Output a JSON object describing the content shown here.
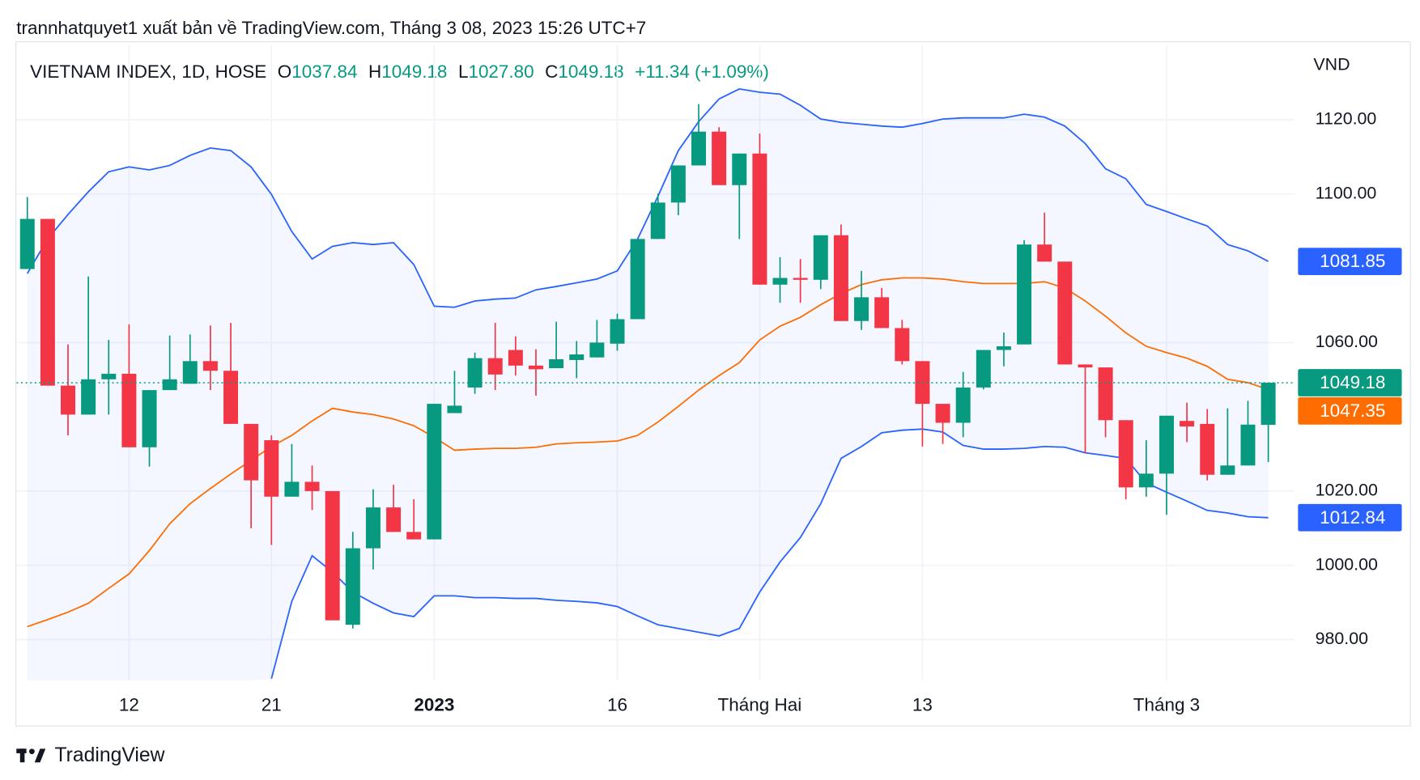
{
  "header": {
    "title": "trannhatquyet1 xuất bản về TradingView.com, Tháng 3 08, 2023 15:26 UTC+7"
  },
  "legend": {
    "symbol": "VIETNAM INDEX, 1D, HOSE",
    "fields": [
      {
        "key": "O",
        "value": "1037.84"
      },
      {
        "key": "H",
        "value": "1049.18"
      },
      {
        "key": "L",
        "value": "1027.80"
      },
      {
        "key": "C",
        "value": "1049.18"
      }
    ],
    "change": "+11.34 (+1.09%)"
  },
  "footer": {
    "brand": "TradingView"
  },
  "chart_data": {
    "type": "candlestick",
    "ylabel": "VND",
    "ylim": [
      969,
      1140
    ],
    "yticks": [
      {
        "value": 980,
        "label": "980.00"
      },
      {
        "value": 1000,
        "label": "1000.00"
      },
      {
        "value": 1020,
        "label": "1020.00"
      },
      {
        "value": 1060,
        "label": "1060.00"
      },
      {
        "value": 1100,
        "label": "1100.00"
      },
      {
        "value": 1120,
        "label": "1120.00"
      }
    ],
    "grid": true,
    "categories": [
      null,
      null,
      null,
      null,
      null,
      "12",
      null,
      null,
      null,
      null,
      null,
      null,
      "21",
      null,
      null,
      null,
      null,
      null,
      null,
      null,
      "2023",
      null,
      null,
      null,
      null,
      null,
      null,
      null,
      null,
      "16",
      null,
      null,
      null,
      null,
      null,
      null,
      "Tháng Hai",
      null,
      null,
      null,
      null,
      null,
      null,
      null,
      "13",
      null,
      null,
      null,
      null,
      null,
      null,
      null,
      null,
      null,
      null,
      null,
      "Tháng 3",
      null,
      null,
      null,
      null,
      null
    ],
    "candles": {
      "up_color": "#089981",
      "down_color": "#f23645",
      "last_label": "1049.18",
      "open": [
        1079.8,
        1093.3,
        1048.4,
        1040.6,
        1050.1,
        1051.6,
        1031.8,
        1047.2,
        1048.9,
        1055.0,
        1052.4,
        1038.1,
        1033.7,
        1018.5,
        1022.5,
        1020.0,
        984.0,
        1004.6,
        1015.6,
        1009.0,
        1007.0,
        1041.0,
        1047.9,
        1055.8,
        1058.0,
        1053.8,
        1053.1,
        1055.3,
        1056.0,
        1059.7,
        1066.3,
        1087.9,
        1097.7,
        1107.7,
        1116.8,
        1102.4,
        1110.9,
        1075.6,
        1077.4,
        1076.9,
        1088.9,
        1065.8,
        1072.2,
        1063.9,
        1055.0,
        1043.5,
        1038.4,
        1047.9,
        1058.0,
        1059.5,
        1086.4,
        1081.8,
        1054.1,
        1053.3,
        1039.1,
        1021.0,
        1024.7,
        1038.9,
        1038.1,
        1024.4,
        1026.9,
        1037.84
      ],
      "high": [
        1099.2,
        1093.3,
        1059.5,
        1077.8,
        1060.7,
        1064.9,
        1047.2,
        1061.9,
        1062.2,
        1064.6,
        1065.3,
        1038.1,
        1035.0,
        1032.7,
        1026.9,
        1020.0,
        1009.0,
        1020.5,
        1021.7,
        1017.8,
        1043.5,
        1052.4,
        1057.3,
        1065.3,
        1061.7,
        1058.2,
        1065.6,
        1060.4,
        1066.1,
        1067.8,
        1087.9,
        1100.1,
        1107.7,
        1124.2,
        1118.0,
        1110.9,
        1116.3,
        1083.0,
        1082.5,
        1088.9,
        1091.8,
        1079.3,
        1074.7,
        1066.1,
        1055.0,
        1043.5,
        1052.1,
        1058.0,
        1062.7,
        1087.6,
        1095.0,
        1081.8,
        1054.1,
        1053.3,
        1039.1,
        1033.7,
        1040.3,
        1043.8,
        1042.1,
        1042.3,
        1044.3,
        1049.18
      ],
      "low": [
        1079.8,
        1048.4,
        1035.0,
        1040.6,
        1040.6,
        1031.8,
        1026.6,
        1047.2,
        1048.9,
        1047.2,
        1038.1,
        1010.0,
        1005.5,
        1018.5,
        1014.9,
        985.2,
        983.0,
        998.9,
        1009.0,
        1007.0,
        1007.0,
        1041.0,
        1046.2,
        1047.2,
        1051.1,
        1045.7,
        1053.1,
        1050.4,
        1056.0,
        1057.8,
        1066.3,
        1087.9,
        1094.3,
        1107.7,
        1102.4,
        1087.9,
        1075.6,
        1070.7,
        1070.7,
        1074.4,
        1065.8,
        1063.4,
        1063.9,
        1054.1,
        1032.0,
        1032.7,
        1034.5,
        1047.4,
        1053.6,
        1059.5,
        1081.8,
        1054.1,
        1030.3,
        1034.5,
        1017.8,
        1018.5,
        1013.6,
        1033.2,
        1022.9,
        1024.4,
        1026.9,
        1027.8
      ],
      "close": [
        1093.3,
        1048.4,
        1040.6,
        1050.1,
        1051.6,
        1031.8,
        1047.2,
        1050.1,
        1055.0,
        1052.4,
        1038.1,
        1022.9,
        1018.5,
        1022.5,
        1020.0,
        985.2,
        1004.6,
        1015.6,
        1009.0,
        1007.0,
        1043.5,
        1043.0,
        1055.8,
        1051.4,
        1053.8,
        1052.8,
        1055.5,
        1056.8,
        1060.0,
        1066.3,
        1087.9,
        1097.7,
        1107.7,
        1116.8,
        1102.4,
        1110.9,
        1075.6,
        1077.4,
        1076.9,
        1088.9,
        1065.8,
        1072.2,
        1063.9,
        1055.0,
        1043.5,
        1038.4,
        1047.9,
        1058.0,
        1059.0,
        1086.4,
        1081.8,
        1054.1,
        1053.3,
        1039.1,
        1021.0,
        1024.7,
        1040.3,
        1037.4,
        1024.4,
        1026.9,
        1037.9,
        1049.18
      ]
    },
    "band_fill": "#2962ff",
    "lines": [
      {
        "color": "#2962ff",
        "last_label": "1081.85",
        "values": [
          1078.6,
          1087.9,
          1094.5,
          1100.6,
          1106.0,
          1107.3,
          1106.5,
          1107.7,
          1110.4,
          1112.4,
          1111.7,
          1107.3,
          1099.9,
          1089.9,
          1082.5,
          1085.9,
          1086.9,
          1086.4,
          1086.9,
          1081.0,
          1069.8,
          1069.5,
          1071.2,
          1071.7,
          1072.0,
          1074.2,
          1075.1,
          1076.1,
          1077.1,
          1079.3,
          1087.9,
          1099.4,
          1111.7,
          1119.5,
          1125.6,
          1128.3,
          1127.4,
          1126.9,
          1123.9,
          1120.2,
          1119.3,
          1118.8,
          1118.3,
          1118.0,
          1119.0,
          1120.2,
          1120.5,
          1120.5,
          1120.5,
          1121.5,
          1120.7,
          1118.3,
          1113.6,
          1106.8,
          1104.1,
          1097.2,
          1095.3,
          1093.3,
          1091.4,
          1086.4,
          1084.7,
          1081.85
        ]
      },
      {
        "color": "#ff6d00",
        "last_label": "1047.35",
        "values": [
          983.5,
          985.4,
          987.4,
          989.8,
          993.8,
          997.7,
          1004.0,
          1011.2,
          1016.6,
          1020.7,
          1024.6,
          1028.3,
          1032.0,
          1035.0,
          1038.9,
          1042.3,
          1041.3,
          1040.6,
          1039.4,
          1037.6,
          1034.5,
          1031.0,
          1031.3,
          1031.5,
          1031.5,
          1031.8,
          1032.7,
          1033.0,
          1033.2,
          1033.5,
          1035.0,
          1038.6,
          1042.8,
          1047.2,
          1051.1,
          1054.6,
          1060.7,
          1064.4,
          1066.8,
          1070.2,
          1073.2,
          1075.6,
          1076.9,
          1077.4,
          1077.4,
          1077.1,
          1076.4,
          1075.9,
          1075.9,
          1075.9,
          1076.4,
          1074.7,
          1071.2,
          1067.1,
          1062.6,
          1059.0,
          1057.3,
          1055.8,
          1053.6,
          1050.1,
          1049.2,
          1047.35
        ]
      },
      {
        "color": "#2962ff",
        "last_label": "1012.84",
        "values": [
          null,
          null,
          null,
          null,
          null,
          null,
          null,
          null,
          null,
          null,
          null,
          null,
          969.5,
          990.3,
          1002.6,
          998.2,
          992.8,
          989.8,
          987.2,
          986.2,
          991.8,
          991.8,
          991.3,
          991.3,
          991.1,
          991.1,
          990.6,
          990.3,
          989.9,
          988.9,
          986.4,
          984.0,
          983.0,
          982.0,
          981.0,
          983.0,
          992.8,
          1000.9,
          1007.5,
          1016.6,
          1028.8,
          1032.0,
          1035.7,
          1036.4,
          1036.7,
          1035.9,
          1032.3,
          1031.3,
          1031.3,
          1031.5,
          1032.0,
          1031.8,
          1030.3,
          1029.6,
          1028.8,
          1022.2,
          1019.7,
          1017.3,
          1014.8,
          1014.1,
          1013.1,
          1012.84
        ]
      }
    ]
  }
}
